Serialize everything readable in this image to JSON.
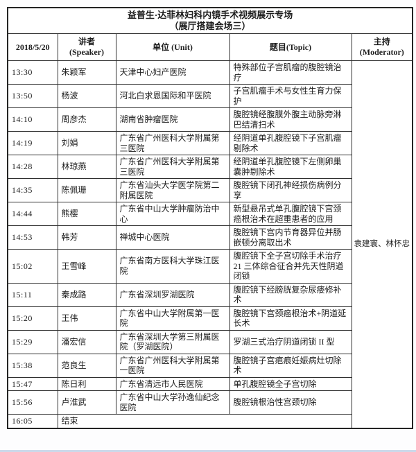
{
  "title": {
    "line1": "益普生·达菲林妇科内镜手术视频展示专场",
    "line2": "（展厅搭建会场三）"
  },
  "header": {
    "date": "2018/5/20",
    "speaker_cn": "讲者",
    "speaker_en": "(Speaker)",
    "unit": "单位 (Unit)",
    "topic": "题目(Topic)",
    "moderator_cn": "主持",
    "moderator_en": "(Moderator)"
  },
  "moderator": "袁建寰、林怀忠",
  "rows": [
    {
      "time": "13:30",
      "speaker": "朱颖军",
      "unit": "天津中心妇产医院",
      "topic": "特殊部位子宫肌瘤的腹腔镜治疗"
    },
    {
      "time": "13:50",
      "speaker": "杨波",
      "unit": "河北白求恩国际和平医院",
      "topic": "子宫肌瘤手术与女性生育力保护"
    },
    {
      "time": "14:10",
      "speaker": "周彦杰",
      "unit": "湖南省肿瘤医院",
      "topic": "腹腔镜经腹膜外腹主动脉旁淋巴结清扫术"
    },
    {
      "time": "14:19",
      "speaker": "刘娟",
      "unit": "广东省广州医科大学附属第三医院",
      "topic": "经阴道单孔腹腔镜下子宫肌瘤剔除术"
    },
    {
      "time": "14:28",
      "speaker": "林琼燕",
      "unit": "广东省广州医科大学附属第三医院",
      "topic": "经阴道单孔腹腔镜下左侧卵巢囊肿剔除术"
    },
    {
      "time": "14:35",
      "speaker": "陈佩珊",
      "unit": "广东省汕头大学医学院第二附属医院",
      "topic": "腹腔镜下闭孔神经损伤病例分享"
    },
    {
      "time": "14:44",
      "speaker": "熊樱",
      "unit": "广东省中山大学肿瘤防治中心",
      "topic": "新型悬吊式单孔腹腔镜下宫颈癌根治术在超重患者的应用"
    },
    {
      "time": "14:53",
      "speaker": "韩芳",
      "unit": "禅城中心医院",
      "topic": "腹腔镜下宫内节育器异位并肠嵌顿分离取出术"
    },
    {
      "time": "15:02",
      "speaker": "王雪峰",
      "unit": "广东省南方医科大学珠江医院",
      "topic": "腹腔镜下全子宫切除手术治疗21 三体综合征合并先天性阴道闭锁"
    },
    {
      "time": "15:11",
      "speaker": "秦成路",
      "unit": "广东省深圳罗湖医院",
      "topic": "腹腔镜下经膀胱复杂尿瘘修补术"
    },
    {
      "time": "15:20",
      "speaker": "王伟",
      "unit": "广东省中山大学附属第一医院",
      "topic": "腹腔镜下宫颈癌根治术+阴道延长术"
    },
    {
      "time": "15:29",
      "speaker": "潘宏信",
      "unit": "广东省深圳大学第三附属医院（罗湖医院）",
      "topic": "罗湖三式治疗阴道闭锁 II 型"
    },
    {
      "time": "15:38",
      "speaker": "范良生",
      "unit": "广东省广州医科大学附属第一医院",
      "topic": "腹腔镜子宫疤痕妊娠病灶切除术"
    },
    {
      "time": "15:47",
      "speaker": "陈日利",
      "unit": "广东省清远市人民医院",
      "topic": "单孔腹腔镜全子宫切除"
    },
    {
      "time": "15:56",
      "speaker": "卢淮武",
      "unit": "广东省中山大学孙逸仙纪念医院",
      "topic": "腹腔镜根治性宫颈切除"
    }
  ],
  "footer_row": {
    "time": "16:05",
    "label": "结束"
  },
  "colors": {
    "border": "#2e2e2e",
    "outer_border": "#242424",
    "background": "#ffffff",
    "text": "#1c1c1c",
    "bottom_strip": "#ccd9ea"
  }
}
